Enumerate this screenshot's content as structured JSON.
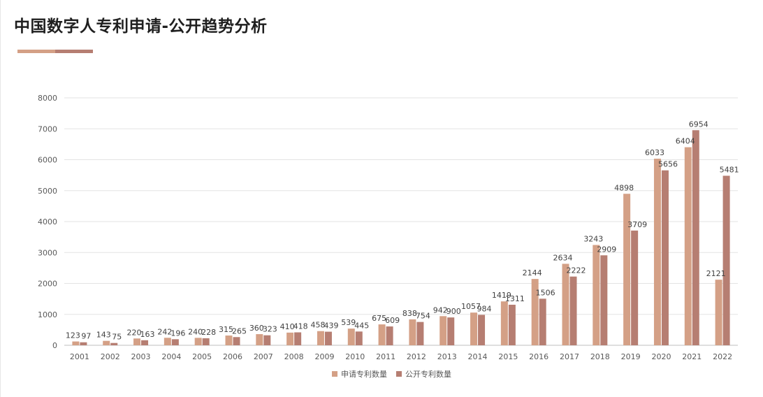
{
  "header": {
    "title": "中国数字人专利申请-公开趋势分析"
  },
  "colors": {
    "accent_light": "#d4a086",
    "accent_dark": "#b67e72",
    "series_application": "#d4a086",
    "series_publication": "#b67e72",
    "gridline": "#e3e3e3",
    "axis": "#bfbfbf",
    "text": "#595959"
  },
  "chart_data": {
    "type": "bar",
    "title": "",
    "xlabel": "",
    "ylabel": "",
    "ylim": [
      0,
      8000
    ],
    "yticks": [
      0,
      1000,
      2000,
      3000,
      4000,
      5000,
      6000,
      7000,
      8000
    ],
    "grid": true,
    "legend_position": "bottom",
    "categories": [
      "2001",
      "2002",
      "2003",
      "2004",
      "2005",
      "2006",
      "2007",
      "2008",
      "2009",
      "2010",
      "2011",
      "2012",
      "2013",
      "2014",
      "2015",
      "2016",
      "2017",
      "2018",
      "2019",
      "2020",
      "2021",
      "2022"
    ],
    "series": [
      {
        "name": "申请专利数量",
        "values": [
          123,
          143,
          220,
          242,
          240,
          315,
          360,
          410,
          458,
          539,
          675,
          838,
          942,
          1057,
          1419,
          2144,
          2634,
          3243,
          4898,
          6033,
          6404,
          2121
        ]
      },
      {
        "name": "公开专利数量",
        "values": [
          97,
          75,
          163,
          196,
          228,
          265,
          323,
          418,
          439,
          445,
          609,
          754,
          900,
          984,
          1311,
          1506,
          2222,
          2909,
          3709,
          5656,
          6954,
          5481
        ]
      }
    ]
  }
}
